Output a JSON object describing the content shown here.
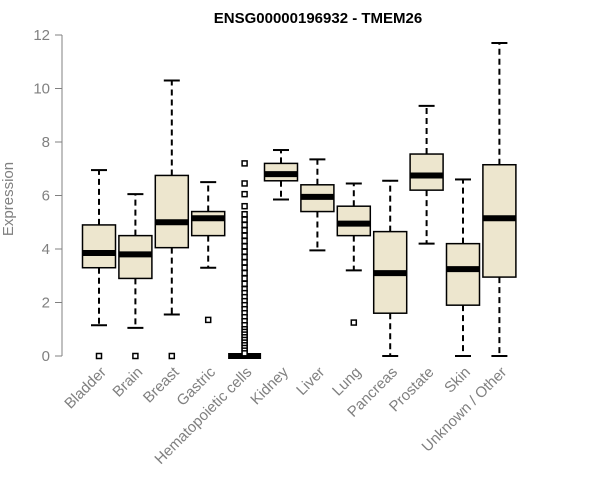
{
  "chart_data": {
    "type": "boxplot",
    "title": "ENSG00000196932 - TMEM26",
    "xlabel": "",
    "ylabel": "Expression",
    "ylim": [
      0,
      12
    ],
    "yticks": [
      0,
      2,
      4,
      6,
      8,
      10,
      12
    ],
    "grid": false,
    "box_fill": "#ede6ce",
    "categories": [
      "Bladder",
      "Brain",
      "Breast",
      "Gastric",
      "Hematopoietic cells",
      "Kidney",
      "Liver",
      "Lung",
      "Pancreas",
      "Prostate",
      "Skin",
      "Unknown / Other"
    ],
    "boxes": [
      {
        "min": 1.15,
        "q1": 3.3,
        "median": 3.85,
        "q3": 4.9,
        "max": 6.95,
        "outliers": [
          0
        ]
      },
      {
        "min": 1.05,
        "q1": 2.9,
        "median": 3.8,
        "q3": 4.5,
        "max": 6.05,
        "outliers": [
          0
        ]
      },
      {
        "min": 1.55,
        "q1": 4.05,
        "median": 5.0,
        "q3": 6.75,
        "max": 10.3,
        "outliers": [
          0
        ]
      },
      {
        "min": 3.3,
        "q1": 4.5,
        "median": 5.15,
        "q3": 5.4,
        "max": 6.5,
        "outliers": [
          1.35
        ]
      },
      {
        "min": 0,
        "q1": 0,
        "median": 0,
        "q3": 0,
        "max": 0,
        "outliers": [
          7.2,
          6.45,
          6.05,
          5.6,
          5.3,
          5.1,
          4.9,
          4.7,
          4.5,
          4.3,
          4.1,
          3.9,
          3.7,
          3.5,
          3.3,
          3.1,
          2.9,
          2.7,
          2.5,
          2.35,
          2.2,
          2.05,
          1.9,
          1.75,
          1.6,
          1.45,
          1.3,
          1.15,
          1.0,
          0.9,
          0.8,
          0.7,
          0.6,
          0.5,
          0.4,
          0.3,
          0.2,
          0.1
        ]
      },
      {
        "min": 5.85,
        "q1": 6.55,
        "median": 6.8,
        "q3": 7.2,
        "max": 7.7,
        "outliers": []
      },
      {
        "min": 3.95,
        "q1": 5.4,
        "median": 5.95,
        "q3": 6.4,
        "max": 7.35,
        "outliers": []
      },
      {
        "min": 3.2,
        "q1": 4.5,
        "median": 4.95,
        "q3": 5.6,
        "max": 6.45,
        "outliers": [
          1.25
        ]
      },
      {
        "min": 0,
        "q1": 1.6,
        "median": 3.1,
        "q3": 4.65,
        "max": 6.55,
        "outliers": []
      },
      {
        "min": 4.2,
        "q1": 6.2,
        "median": 6.75,
        "q3": 7.55,
        "max": 9.35,
        "outliers": []
      },
      {
        "min": 0,
        "q1": 1.9,
        "median": 3.25,
        "q3": 4.2,
        "max": 6.6,
        "outliers": []
      },
      {
        "min": 0,
        "q1": 2.95,
        "median": 5.15,
        "q3": 7.15,
        "max": 11.7,
        "outliers": []
      }
    ]
  }
}
